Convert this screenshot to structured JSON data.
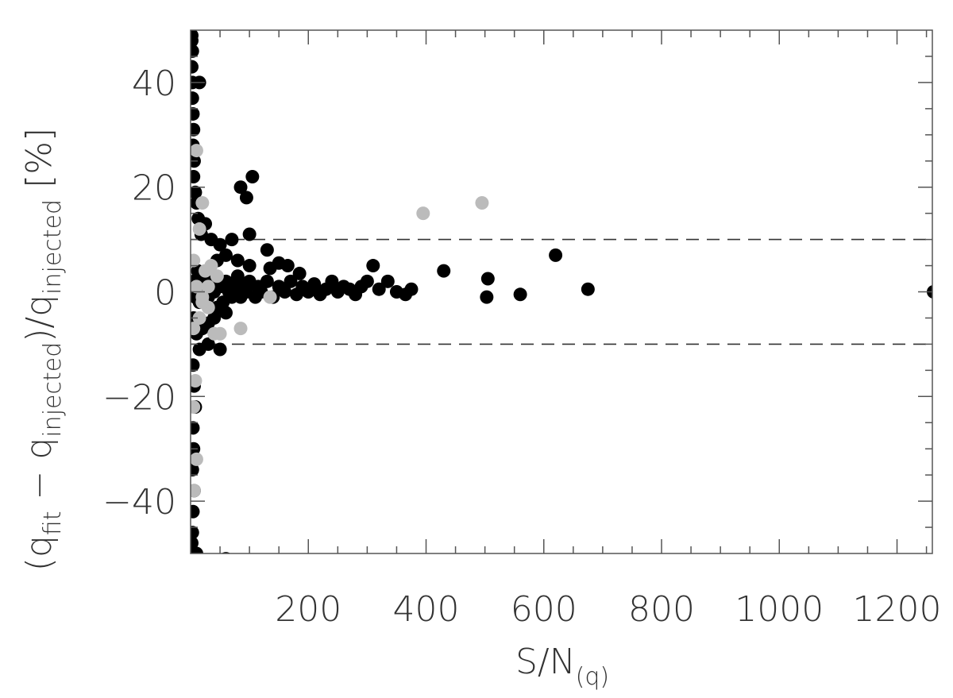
{
  "chart_data": {
    "type": "scatter",
    "title": "",
    "xlabel": {
      "main": "S/N",
      "sub": "(q)"
    },
    "ylabel": {
      "open": "(q",
      "fit_sub": "fit",
      "minus": " − q",
      "inj_sub1": "injected",
      "mid": ")/q",
      "inj_sub2": "injected",
      "unit": " [%]"
    },
    "xlim": [
      0,
      1260
    ],
    "ylim": [
      -50,
      50
    ],
    "x_ticks": [
      {
        "value": 200,
        "label": "200"
      },
      {
        "value": 400,
        "label": "400"
      },
      {
        "value": 600,
        "label": "600"
      },
      {
        "value": 800,
        "label": "800"
      },
      {
        "value": 1000,
        "label": "1000"
      },
      {
        "value": 1200,
        "label": "1200"
      }
    ],
    "y_ticks": [
      {
        "value": 40,
        "label": "40"
      },
      {
        "value": 20,
        "label": "20"
      },
      {
        "value": 0,
        "label": "0"
      },
      {
        "value": -20,
        "label": "−20"
      },
      {
        "value": -40,
        "label": "−40"
      }
    ],
    "reference_lines": [
      10,
      -10
    ],
    "grid": false,
    "series": [
      {
        "color": "#000000",
        "points": [
          [
            2,
            49
          ],
          [
            2,
            48
          ],
          [
            3,
            46
          ],
          [
            2,
            43
          ],
          [
            3,
            40
          ],
          [
            15,
            40
          ],
          [
            3,
            37
          ],
          [
            4,
            34
          ],
          [
            5,
            31
          ],
          [
            4,
            28
          ],
          [
            6,
            25
          ],
          [
            5,
            22
          ],
          [
            8,
            19
          ],
          [
            10,
            17
          ],
          [
            13,
            14
          ],
          [
            25,
            13
          ],
          [
            18,
            11
          ],
          [
            35,
            10
          ],
          [
            50,
            9
          ],
          [
            60,
            7
          ],
          [
            45,
            6
          ],
          [
            80,
            6
          ],
          [
            100,
            5
          ],
          [
            135,
            4.5
          ],
          [
            150,
            5.5
          ],
          [
            165,
            5
          ],
          [
            185,
            3.5
          ],
          [
            130,
            8
          ],
          [
            70,
            10
          ],
          [
            85,
            20
          ],
          [
            95,
            18
          ],
          [
            100,
            11
          ],
          [
            105,
            22
          ],
          [
            3,
            0
          ],
          [
            5,
            2
          ],
          [
            8,
            -1
          ],
          [
            12,
            4
          ],
          [
            15,
            -2
          ],
          [
            20,
            1
          ],
          [
            25,
            3
          ],
          [
            30,
            -1
          ],
          [
            35,
            2
          ],
          [
            40,
            0
          ],
          [
            45,
            -3
          ],
          [
            50,
            1
          ],
          [
            55,
            -2
          ],
          [
            60,
            2
          ],
          [
            65,
            0
          ],
          [
            70,
            -1
          ],
          [
            75,
            1
          ],
          [
            80,
            3
          ],
          [
            85,
            -1
          ],
          [
            90,
            1
          ],
          [
            95,
            0
          ],
          [
            100,
            2
          ],
          [
            110,
            -1
          ],
          [
            115,
            1
          ],
          [
            120,
            0
          ],
          [
            130,
            2
          ],
          [
            140,
            -1
          ],
          [
            150,
            1
          ],
          [
            160,
            0
          ],
          [
            170,
            2
          ],
          [
            180,
            -0.5
          ],
          [
            190,
            1
          ],
          [
            200,
            0
          ],
          [
            210,
            1.5
          ],
          [
            220,
            -0.5
          ],
          [
            230,
            0.5
          ],
          [
            240,
            2
          ],
          [
            250,
            0
          ],
          [
            260,
            1
          ],
          [
            270,
            0.5
          ],
          [
            280,
            -0.5
          ],
          [
            290,
            1
          ],
          [
            300,
            2
          ],
          [
            310,
            5
          ],
          [
            320,
            0.5
          ],
          [
            335,
            2
          ],
          [
            350,
            0
          ],
          [
            365,
            -0.5
          ],
          [
            375,
            0.5
          ],
          [
            430,
            4
          ],
          [
            505,
            2.5
          ],
          [
            503,
            -1
          ],
          [
            560,
            -0.5
          ],
          [
            620,
            7
          ],
          [
            675,
            0.5
          ],
          [
            1262,
            0
          ],
          [
            5,
            -5
          ],
          [
            10,
            -8
          ],
          [
            15,
            -11
          ],
          [
            20,
            -7
          ],
          [
            30,
            -6
          ],
          [
            40,
            -5
          ],
          [
            60,
            -4
          ],
          [
            30,
            -10
          ],
          [
            50,
            -11
          ],
          [
            4,
            -14
          ],
          [
            6,
            -18
          ],
          [
            8,
            -22
          ],
          [
            4,
            -26
          ],
          [
            5,
            -30
          ],
          [
            3,
            -34
          ],
          [
            6,
            -38
          ],
          [
            4,
            -42
          ],
          [
            3,
            -46
          ],
          [
            2,
            -48
          ],
          [
            10,
            -50
          ],
          [
            60,
            -51
          ]
        ]
      },
      {
        "color": "#bbbbbb",
        "points": [
          [
            10,
            27
          ],
          [
            20,
            17
          ],
          [
            15,
            12
          ],
          [
            5,
            6
          ],
          [
            25,
            4
          ],
          [
            35,
            5
          ],
          [
            45,
            3
          ],
          [
            10,
            1
          ],
          [
            20,
            -1
          ],
          [
            30,
            -3
          ],
          [
            15,
            -5
          ],
          [
            5,
            -7
          ],
          [
            40,
            -8
          ],
          [
            50,
            -8
          ],
          [
            85,
            -7
          ],
          [
            135,
            -1
          ],
          [
            395,
            15
          ],
          [
            495,
            17
          ],
          [
            8,
            -17
          ],
          [
            5,
            -22
          ],
          [
            10,
            -32
          ],
          [
            6,
            -38
          ],
          [
            20,
            -2
          ],
          [
            30,
            1
          ]
        ]
      }
    ]
  }
}
